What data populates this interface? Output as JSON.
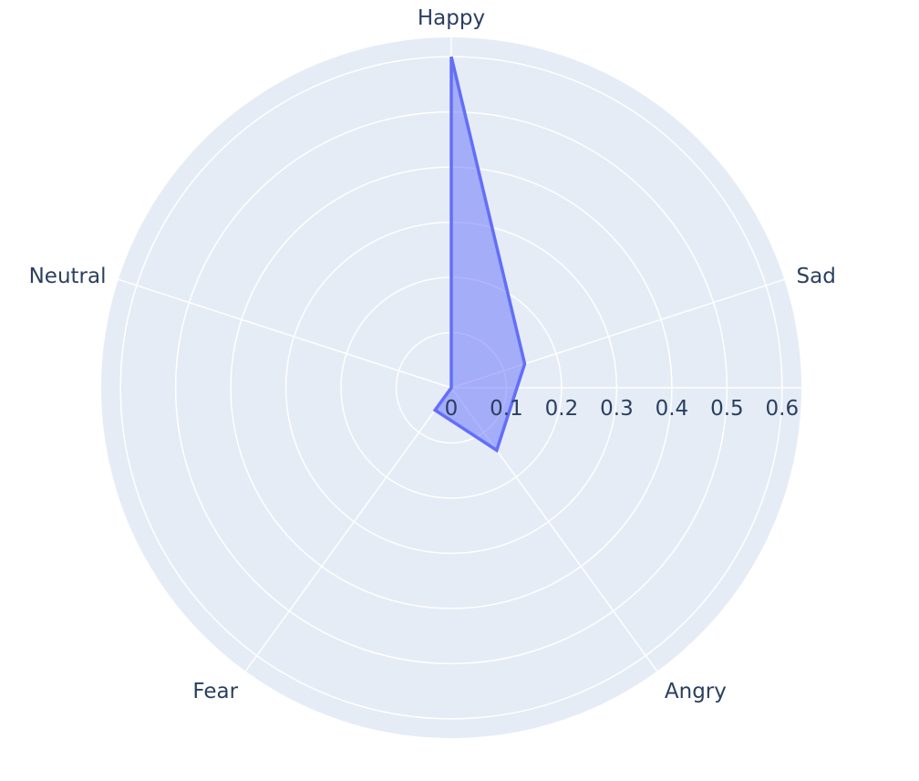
{
  "chart_data": {
    "type": "radar",
    "categories": [
      "Happy",
      "Sad",
      "Angry",
      "Fear",
      "Neutral"
    ],
    "series": [
      {
        "values": [
          0.6,
          0.14,
          0.14,
          0.05,
          0.0
        ]
      }
    ],
    "radial_axis": {
      "range": [
        0,
        0.635
      ],
      "ticks": [
        0,
        0.1,
        0.2,
        0.3,
        0.4,
        0.5,
        0.6
      ],
      "tick_labels": [
        "0",
        "0.1",
        "0.2",
        "0.3",
        "0.4",
        "0.5",
        "0.6"
      ]
    },
    "grid": true,
    "legend": "none",
    "colors": {
      "polar_background": "#e5ecf6",
      "grid": "#ffffff",
      "series_line": "#636efa",
      "series_fill": "rgba(99,110,250,0.5)",
      "text": "#2a3f5f"
    }
  }
}
